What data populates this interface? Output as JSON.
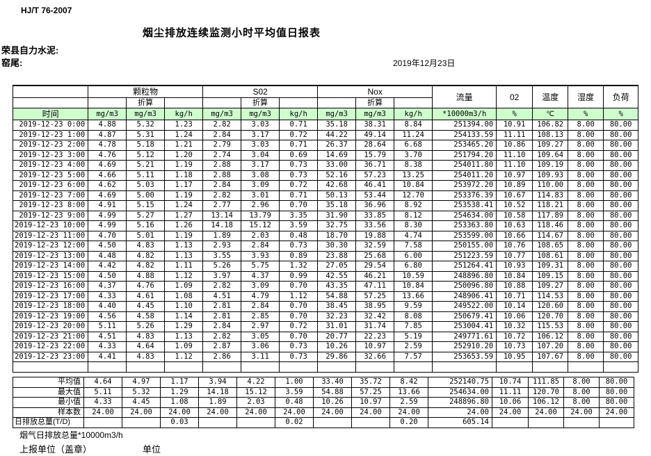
{
  "page": {
    "standard_no": "HJ/T  76-2007",
    "title": "烟尘排放连续监测小时平均值日报表",
    "company": "荣县自力水泥:",
    "site": "窑尾:",
    "date": "2019年12月23日"
  },
  "table": {
    "groups": {
      "time": "时间",
      "particulate": "颗粒物",
      "so2": "S02",
      "nox": "Nox",
      "flow": "流量",
      "o2": "02",
      "temp": "温度",
      "humidity": "湿度",
      "load": "负荷",
      "converted": "折算"
    },
    "units": {
      "mgm3": "mg/m3",
      "kgh": "kg/h",
      "flow": "*10000m3/h",
      "pct": "%",
      "celsius": "℃"
    },
    "rows": [
      [
        "2019-12-23 0:00",
        "4.88",
        "5.32",
        "1.23",
        "2.82",
        "3.03",
        "0.71",
        "35.18",
        "38.31",
        "8.84",
        "251394.00",
        "10.91",
        "106.82",
        "8.00",
        "80.00"
      ],
      [
        "2019-12-23 1:00",
        "4.87",
        "5.31",
        "1.24",
        "2.84",
        "3.17",
        "0.72",
        "44.22",
        "49.14",
        "11.24",
        "254133.59",
        "11.11",
        "108.13",
        "8.00",
        "80.00"
      ],
      [
        "2019-12-23 2:00",
        "4.78",
        "5.18",
        "1.21",
        "2.79",
        "3.03",
        "0.71",
        "26.37",
        "28.64",
        "6.68",
        "253465.20",
        "10.86",
        "109.27",
        "8.00",
        "80.00"
      ],
      [
        "2019-12-23 3:00",
        "4.76",
        "5.12",
        "1.20",
        "2.74",
        "3.04",
        "0.69",
        "14.69",
        "15.79",
        "3.70",
        "251794.20",
        "11.10",
        "109.64",
        "8.00",
        "80.00"
      ],
      [
        "2019-12-23 4:00",
        "4.69",
        "5.21",
        "1.19",
        "2.88",
        "3.17",
        "0.73",
        "33.00",
        "36.71",
        "8.38",
        "254011.80",
        "11.10",
        "109.19",
        "8.00",
        "80.00"
      ],
      [
        "2019-12-23 5:00",
        "4.66",
        "5.11",
        "1.18",
        "2.88",
        "3.08",
        "0.73",
        "52.16",
        "57.23",
        "13.25",
        "254011.20",
        "10.97",
        "109.93",
        "8.00",
        "80.00"
      ],
      [
        "2019-12-23 6:00",
        "4.62",
        "5.03",
        "1.17",
        "2.84",
        "3.09",
        "0.72",
        "42.68",
        "46.41",
        "10.84",
        "253972.20",
        "10.89",
        "110.00",
        "8.00",
        "80.00"
      ],
      [
        "2019-12-23 7:00",
        "4.69",
        "5.00",
        "1.19",
        "2.82",
        "3.01",
        "0.71",
        "50.13",
        "53.44",
        "12.70",
        "253376.39",
        "10.67",
        "114.83",
        "8.00",
        "80.00"
      ],
      [
        "2019-12-23 8:00",
        "4.91",
        "5.15",
        "1.24",
        "2.77",
        "2.96",
        "0.70",
        "35.18",
        "36.96",
        "8.92",
        "253538.41",
        "10.52",
        "118.21",
        "8.00",
        "80.00"
      ],
      [
        "2019-12-23 9:00",
        "4.99",
        "5.27",
        "1.27",
        "13.14",
        "13.79",
        "3.35",
        "31.90",
        "33.85",
        "8.12",
        "254634.00",
        "10.58",
        "117.89",
        "8.00",
        "80.00"
      ],
      [
        "2019-12-23 10:00",
        "4.99",
        "5.16",
        "1.26",
        "14.18",
        "15.12",
        "3.59",
        "32.75",
        "33.56",
        "8.30",
        "253363.80",
        "10.63",
        "118.46",
        "8.00",
        "80.00"
      ],
      [
        "2019-12-23 11:00",
        "4.70",
        "5.01",
        "1.19",
        "1.89",
        "2.03",
        "0.48",
        "18.70",
        "19.88",
        "4.74",
        "253599.00",
        "10.66",
        "114.67",
        "8.00",
        "80.00"
      ],
      [
        "2019-12-23 12:00",
        "4.50",
        "4.83",
        "1.13",
        "2.93",
        "2.84",
        "0.73",
        "30.30",
        "32.59",
        "7.58",
        "250155.00",
        "10.76",
        "108.65",
        "8.00",
        "80.00"
      ],
      [
        "2019-12-23 13:00",
        "4.48",
        "4.82",
        "1.13",
        "3.55",
        "3.93",
        "0.89",
        "23.88",
        "25.68",
        "6.00",
        "251223.59",
        "10.77",
        "108.61",
        "8.00",
        "80.00"
      ],
      [
        "2019-12-23 14:00",
        "4.42",
        "4.82",
        "1.11",
        "5.26",
        "5.75",
        "1.32",
        "27.05",
        "29.54",
        "6.80",
        "251264.41",
        "10.93",
        "109.31",
        "8.00",
        "80.00"
      ],
      [
        "2019-12-23 15:00",
        "4.50",
        "4.88",
        "1.12",
        "3.97",
        "4.37",
        "0.99",
        "42.55",
        "46.21",
        "10.59",
        "248896.80",
        "10.84",
        "109.15",
        "8.00",
        "80.00"
      ],
      [
        "2019-12-23 16:00",
        "4.37",
        "4.76",
        "1.09",
        "2.82",
        "3.09",
        "0.70",
        "43.35",
        "47.11",
        "10.84",
        "250096.80",
        "10.88",
        "109.27",
        "8.00",
        "80.00"
      ],
      [
        "2019-12-23 17:00",
        "4.33",
        "4.61",
        "1.08",
        "4.51",
        "4.79",
        "1.12",
        "54.88",
        "57.25",
        "13.66",
        "248906.41",
        "10.71",
        "114.53",
        "8.00",
        "80.00"
      ],
      [
        "2019-12-23 18:00",
        "4.40",
        "4.45",
        "1.10",
        "2.81",
        "2.84",
        "0.70",
        "38.45",
        "38.95",
        "9.59",
        "249522.00",
        "10.14",
        "120.60",
        "8.00",
        "80.00"
      ],
      [
        "2019-12-23 19:00",
        "4.56",
        "4.58",
        "1.14",
        "2.81",
        "2.85",
        "0.70",
        "32.23",
        "32.42",
        "8.08",
        "250679.41",
        "10.06",
        "120.70",
        "8.00",
        "80.00"
      ],
      [
        "2019-12-23 20:00",
        "5.11",
        "5.26",
        "1.29",
        "2.84",
        "2.97",
        "0.72",
        "31.01",
        "31.74",
        "7.85",
        "253004.41",
        "10.32",
        "115.53",
        "8.00",
        "80.00"
      ],
      [
        "2019-12-23 21:00",
        "4.51",
        "4.83",
        "1.13",
        "2.82",
        "3.05",
        "0.70",
        "20.77",
        "22.23",
        "5.19",
        "249771.61",
        "10.72",
        "106.12",
        "8.00",
        "80.00"
      ],
      [
        "2019-12-23 22:00",
        "4.33",
        "4.64",
        "1.09",
        "2.87",
        "3.06",
        "0.73",
        "10.26",
        "10.97",
        "2.59",
        "252910.20",
        "10.73",
        "107.20",
        "8.00",
        "80.00"
      ],
      [
        "2019-12-23 23:00",
        "4.41",
        "4.83",
        "1.12",
        "2.86",
        "3.11",
        "0.73",
        "29.86",
        "32.66",
        "7.57",
        "253653.59",
        "10.95",
        "107.67",
        "8.00",
        "80.00"
      ]
    ]
  },
  "summary": {
    "rows": [
      [
        "平均值",
        "4.64",
        "4.97",
        "1.17",
        "3.94",
        "4.22",
        "1.00",
        "33.40",
        "35.72",
        "8.42",
        "252140.75",
        "10.74",
        "111.85",
        "8.00",
        "80.00"
      ],
      [
        "最大值",
        "5.11",
        "5.32",
        "1.29",
        "14.18",
        "15.12",
        "3.59",
        "54.88",
        "57.25",
        "13.66",
        "254634.00",
        "11.11",
        "120.70",
        "8.00",
        "80.00"
      ],
      [
        "最小值",
        "4.33",
        "4.45",
        "1.08",
        "1.89",
        "2.03",
        "0.48",
        "10.26",
        "10.97",
        "2.59",
        "248896.80",
        "10.06",
        "106.12",
        "8.00",
        "80.00"
      ],
      [
        "样本数",
        "24.00",
        "24.00",
        "24.00",
        "24.00",
        "24.00",
        "24.00",
        "24.00",
        "24.00",
        "24.00",
        "24.00",
        "24.00",
        "24.00",
        "24.00",
        "24.00"
      ],
      [
        "日排放总量(T/D)",
        "",
        "",
        "0.03",
        "",
        "",
        "0.02",
        "",
        "",
        "0.20",
        "605.14",
        "",
        "",
        "",
        ""
      ]
    ]
  },
  "footer": {
    "note": "烟气日排放总量*10000m3/h",
    "report_unit": "上报单位（盖章）",
    "unit": "单位"
  }
}
